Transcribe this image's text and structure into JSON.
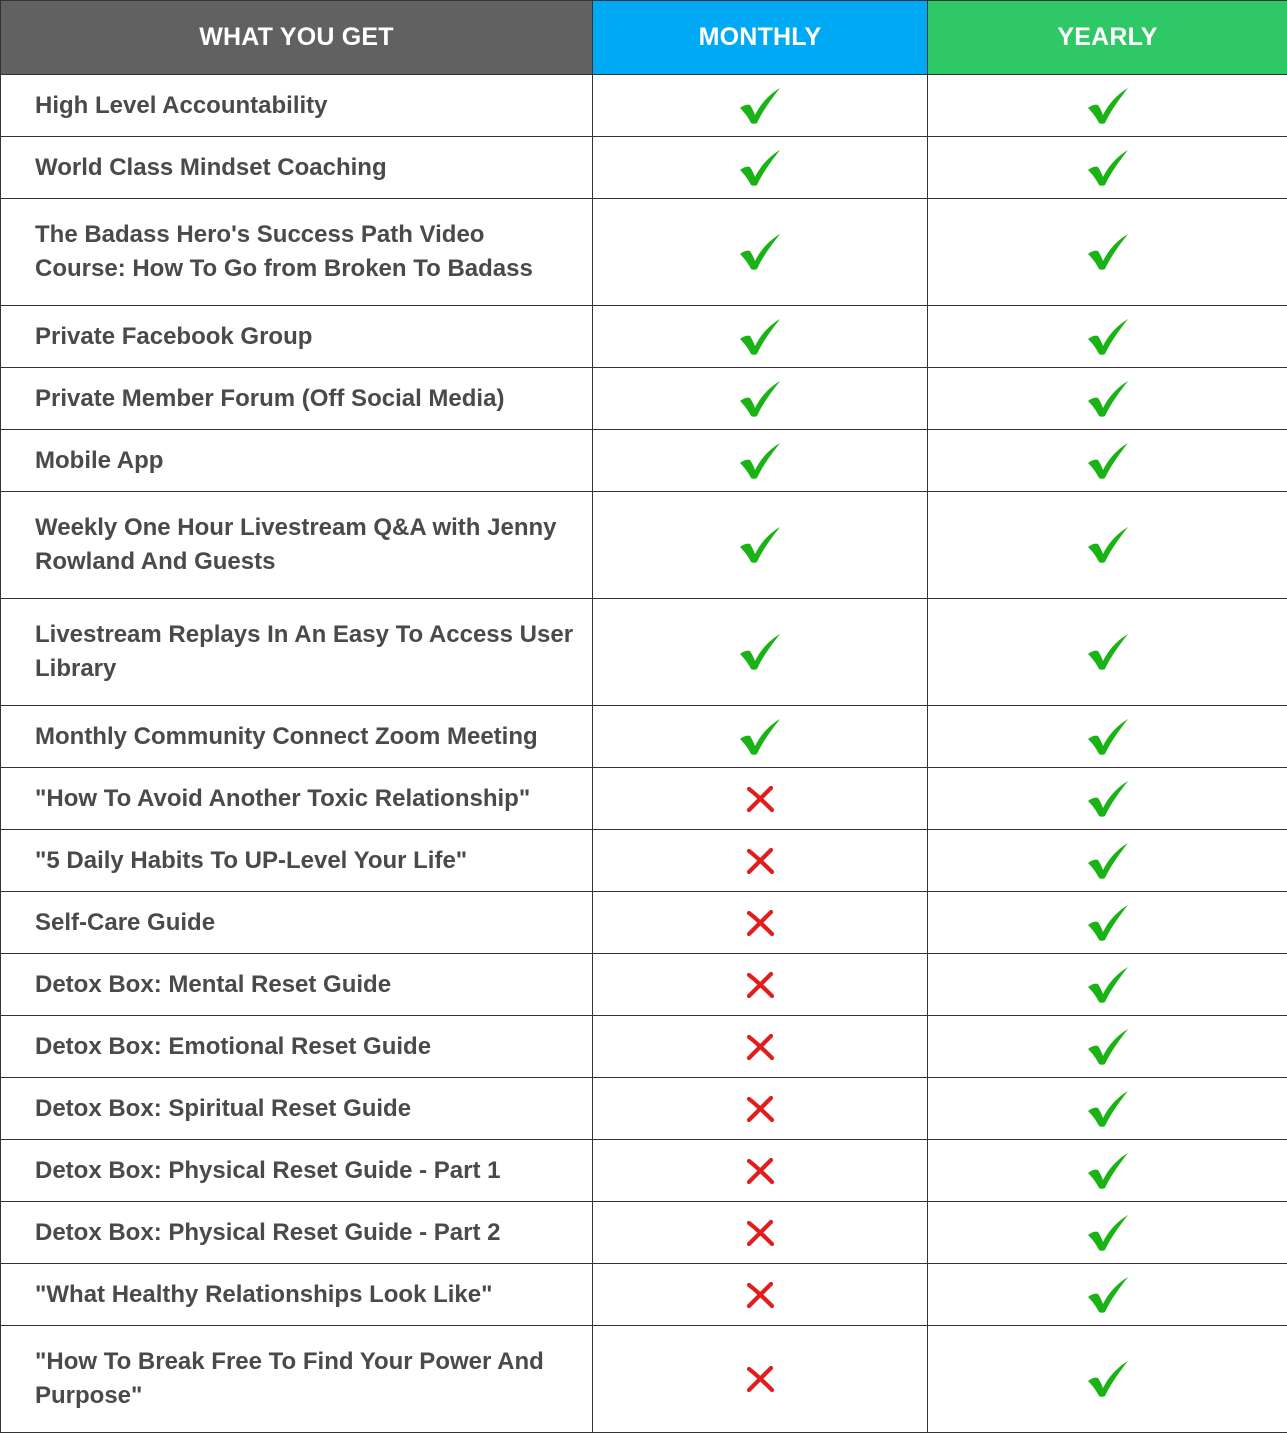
{
  "header": {
    "feature_col": "WHAT YOU GET",
    "monthly_col": "MONTHLY",
    "yearly_col": "YEARLY",
    "colors": {
      "feature_bg": "#616161",
      "monthly_bg": "#00a9f4",
      "yearly_bg": "#2ec866"
    }
  },
  "icons": {
    "included": "check-icon",
    "excluded": "cross-icon",
    "check_color": "#1ab316",
    "cross_color": "#e51c1c"
  },
  "rows": [
    {
      "feature": "High Level Accountability",
      "monthly": true,
      "yearly": true
    },
    {
      "feature": "World Class Mindset Coaching",
      "monthly": true,
      "yearly": true
    },
    {
      "feature": "The Badass Hero's Success Path Video Course: How To Go from Broken To Badass",
      "monthly": true,
      "yearly": true
    },
    {
      "feature": "Private Facebook Group",
      "monthly": true,
      "yearly": true
    },
    {
      "feature": "Private Member Forum (Off Social Media)",
      "monthly": true,
      "yearly": true
    },
    {
      "feature": "Mobile App",
      "monthly": true,
      "yearly": true
    },
    {
      "feature": "Weekly One Hour Livestream Q&A with Jenny Rowland And Guests",
      "monthly": true,
      "yearly": true
    },
    {
      "feature": "Livestream Replays In An Easy To Access User Library",
      "monthly": true,
      "yearly": true
    },
    {
      "feature": "Monthly Community Connect Zoom Meeting",
      "monthly": true,
      "yearly": true
    },
    {
      "feature": "\"How To Avoid Another Toxic Relationship\"",
      "monthly": false,
      "yearly": true
    },
    {
      "feature": "\"5 Daily Habits To UP-Level Your Life\"",
      "monthly": false,
      "yearly": true
    },
    {
      "feature": "Self-Care Guide",
      "monthly": false,
      "yearly": true
    },
    {
      "feature": "Detox Box: Mental Reset Guide",
      "monthly": false,
      "yearly": true
    },
    {
      "feature": "Detox Box: Emotional Reset Guide",
      "monthly": false,
      "yearly": true
    },
    {
      "feature": "Detox Box: Spiritual Reset Guide",
      "monthly": false,
      "yearly": true
    },
    {
      "feature": "Detox Box: Physical Reset Guide - Part 1",
      "monthly": false,
      "yearly": true
    },
    {
      "feature": "Detox Box: Physical Reset Guide - Part 2",
      "monthly": false,
      "yearly": true
    },
    {
      "feature": "\"What Healthy Relationships Look Like\"",
      "monthly": false,
      "yearly": true
    },
    {
      "feature": "\"How To Break Free To Find Your Power And Purpose\"",
      "monthly": false,
      "yearly": true
    }
  ]
}
